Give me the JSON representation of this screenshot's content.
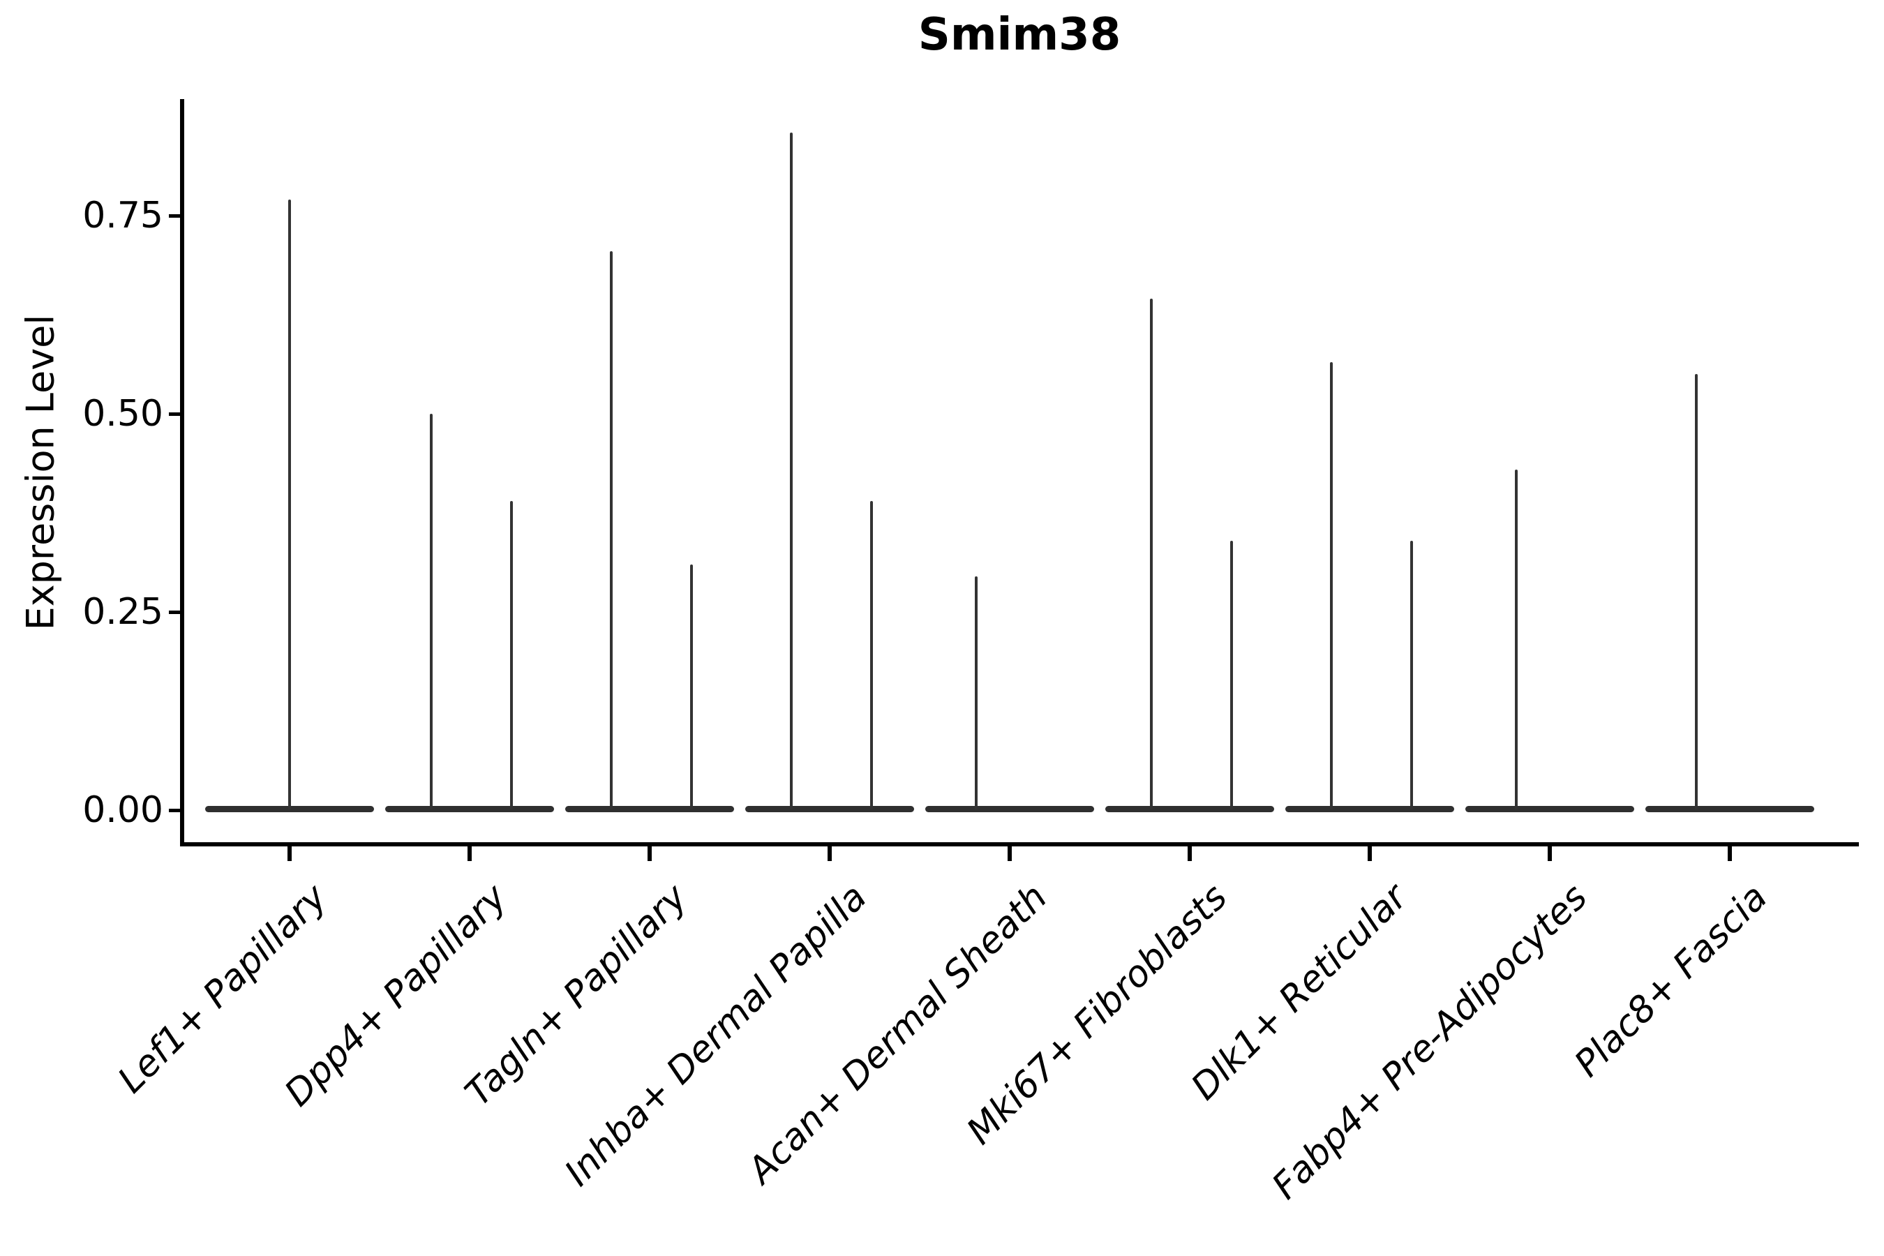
{
  "title": "Smim38",
  "y_axis": {
    "label": "Expression Level",
    "tick_labels": [
      "0.00",
      "0.25",
      "0.50",
      "0.75"
    ]
  },
  "chart_data": {
    "type": "violin",
    "title": "Smim38",
    "xlabel": "",
    "ylabel": "Expression Level",
    "ylim": [
      -0.05,
      0.9
    ],
    "yticks": [
      0,
      0.25,
      0.5,
      0.75
    ],
    "grid": false,
    "legend": null,
    "baseline_value": 0,
    "line_color": "#333333",
    "axis_color": "#000000",
    "categories": [
      "Lef1+ Papillary",
      "Dpp4+ Papillary",
      "Tagln+ Papillary",
      "Inhba+ Dermal Papilla",
      "Acan+ Dermal Sheath",
      "Mki67+ Fibroblasts",
      "Dlk1+ Reticular",
      "Fabp4+ Pre-Adipocytes",
      "Plac8+ Fascia"
    ],
    "violins": [
      {
        "category": "Lef1+ Papillary",
        "spikes": [
          {
            "dx": 0,
            "max": 0.77
          }
        ]
      },
      {
        "category": "Dpp4+ Papillary",
        "spikes": [
          {
            "dx": -55,
            "max": 0.5
          },
          {
            "dx": 60,
            "max": 0.39
          }
        ]
      },
      {
        "category": "Tagln+ Papillary",
        "spikes": [
          {
            "dx": -55,
            "max": 0.705
          },
          {
            "dx": 60,
            "max": 0.31
          }
        ]
      },
      {
        "category": "Inhba+ Dermal Papilla",
        "spikes": [
          {
            "dx": -55,
            "max": 0.855
          },
          {
            "dx": 60,
            "max": 0.39
          }
        ]
      },
      {
        "category": "Acan+ Dermal Sheath",
        "spikes": [
          {
            "dx": -48,
            "max": 0.295
          }
        ]
      },
      {
        "category": "Mki67+ Fibroblasts",
        "spikes": [
          {
            "dx": -55,
            "max": 0.645
          },
          {
            "dx": 60,
            "max": 0.34
          }
        ]
      },
      {
        "category": "Dlk1+ Reticular",
        "spikes": [
          {
            "dx": -55,
            "max": 0.565
          },
          {
            "dx": 60,
            "max": 0.34
          }
        ]
      },
      {
        "category": "Fabp4+ Pre-Adipocytes",
        "spikes": [
          {
            "dx": -48,
            "max": 0.43
          }
        ]
      },
      {
        "category": "Plac8+ Fascia",
        "spikes": [
          {
            "dx": -48,
            "max": 0.55
          }
        ]
      }
    ]
  }
}
